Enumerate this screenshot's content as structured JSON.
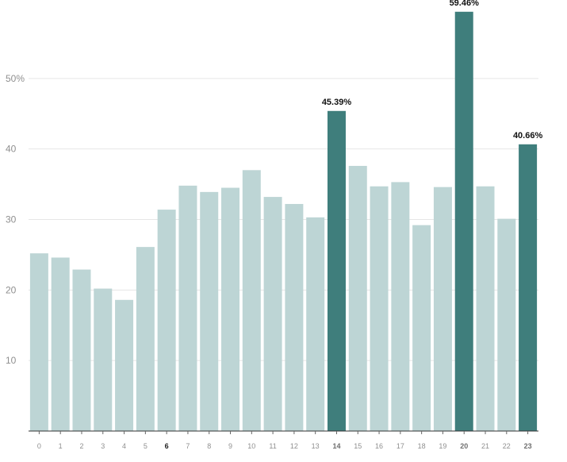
{
  "chart_data": {
    "type": "bar",
    "categories": [
      "0",
      "1",
      "2",
      "3",
      "4",
      "5",
      "6",
      "7",
      "8",
      "9",
      "10",
      "11",
      "12",
      "13",
      "14",
      "15",
      "16",
      "17",
      "18",
      "19",
      "20",
      "21",
      "22",
      "23"
    ],
    "values": [
      25.2,
      24.6,
      22.9,
      20.2,
      18.6,
      26.1,
      31.4,
      34.8,
      33.9,
      34.5,
      37.0,
      33.2,
      32.2,
      30.3,
      45.39,
      37.6,
      34.7,
      35.3,
      29.2,
      34.6,
      59.46,
      34.7,
      30.1,
      40.66
    ],
    "highlighted": [
      "14",
      "20",
      "23"
    ],
    "emphasized_ticks": [
      "6",
      "14",
      "20",
      "23"
    ],
    "active_tick": "6",
    "data_labels": {
      "14": "45.39%",
      "20": "59.46%",
      "23": "40.66%"
    },
    "y_ticks": [
      {
        "value": 10,
        "label": "10"
      },
      {
        "value": 20,
        "label": "20"
      },
      {
        "value": 30,
        "label": "30"
      },
      {
        "value": 40,
        "label": "40"
      },
      {
        "value": 50,
        "label": "50%"
      }
    ],
    "ylim": [
      0,
      60
    ],
    "grid": true,
    "colors": {
      "bar": "#bdd5d5",
      "highlight": "#3f7e7c",
      "grid": "#e6e6e6",
      "axis": "#333333"
    },
    "title": "",
    "xlabel": "",
    "ylabel": ""
  }
}
